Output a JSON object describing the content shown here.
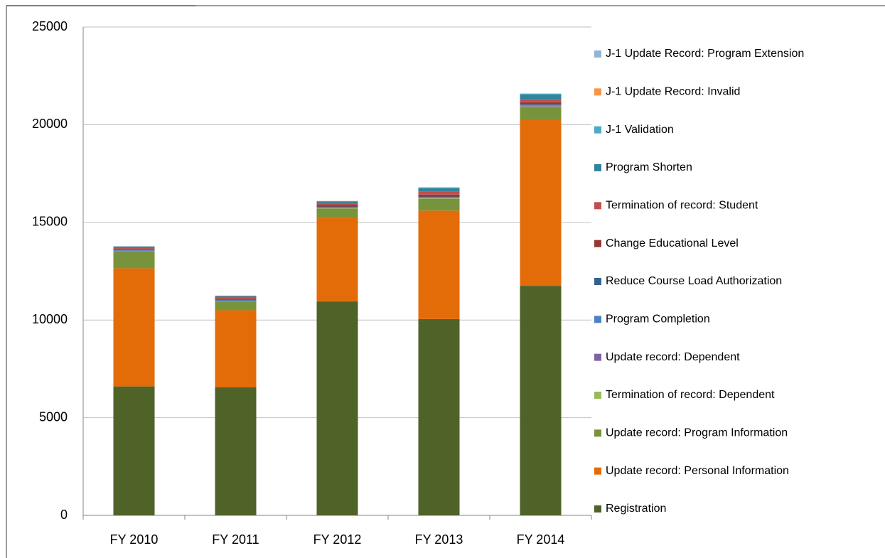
{
  "chart_data": {
    "type": "stacked_bar",
    "categories": [
      "FY 2010",
      "FY 2011",
      "FY 2012",
      "FY 2013",
      "FY 2014"
    ],
    "series": [
      {
        "name": "Registration",
        "color": "#4f6228",
        "values": [
          6600,
          6550,
          10950,
          10050,
          11750
        ]
      },
      {
        "name": "Update record: Personal Information",
        "color": "#e36c09",
        "values": [
          6050,
          3950,
          4300,
          5550,
          8500
        ]
      },
      {
        "name": "Update record: Program Information",
        "color": "#77933c",
        "values": [
          850,
          450,
          450,
          600,
          650
        ]
      },
      {
        "name": "Termination of record:  Dependent",
        "color": "#9bbb59",
        "values": [
          20,
          20,
          20,
          30,
          30
        ]
      },
      {
        "name": "Update record:  Dependent",
        "color": "#8064a2",
        "values": [
          30,
          20,
          30,
          30,
          40
        ]
      },
      {
        "name": "Program Completion",
        "color": "#4f81bd",
        "values": [
          30,
          20,
          30,
          30,
          40
        ]
      },
      {
        "name": "Reduce Course Load Authorization",
        "color": "#366092",
        "values": [
          20,
          20,
          30,
          30,
          40
        ]
      },
      {
        "name": "Change Educational Level",
        "color": "#953735",
        "values": [
          60,
          60,
          90,
          100,
          100
        ]
      },
      {
        "name": "Termination of record:  Student",
        "color": "#c0504d",
        "values": [
          60,
          100,
          90,
          150,
          150
        ]
      },
      {
        "name": "Program Shorten",
        "color": "#31849b",
        "values": [
          40,
          40,
          80,
          180,
          250
        ]
      },
      {
        "name": "J-1 Validation",
        "color": "#4bacc6",
        "values": [
          10,
          10,
          20,
          30,
          30
        ]
      },
      {
        "name": "J-1 Update Record: Invalid",
        "color": "#f79646",
        "values": [
          5,
          5,
          5,
          10,
          10
        ]
      },
      {
        "name": "J-1 Update Record: Program Extension",
        "color": "#95b3d7",
        "values": [
          5,
          5,
          5,
          10,
          10
        ]
      }
    ],
    "ylim": [
      0,
      25000
    ],
    "yticks": [
      0,
      5000,
      10000,
      15000,
      20000,
      25000
    ],
    "grid": true,
    "legend": "right"
  }
}
